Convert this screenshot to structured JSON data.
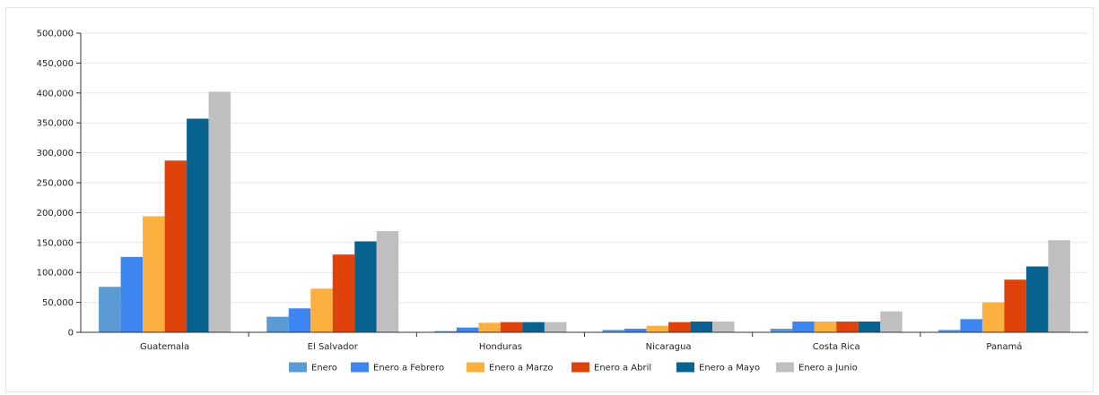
{
  "chart_data": {
    "type": "bar",
    "categories": [
      "Guatemala",
      "El Salvador",
      "Honduras",
      "Nicaragua",
      "Costa Rica",
      "Panamá"
    ],
    "series": [
      {
        "name": "Enero",
        "color": "#5b9bd5",
        "values": [
          76000,
          26000,
          2000,
          4000,
          6000,
          4000
        ]
      },
      {
        "name": "Enero a Febrero",
        "color": "#3d85f0",
        "values": [
          126000,
          40000,
          8000,
          6000,
          18000,
          22000
        ]
      },
      {
        "name": "Enero a Marzo",
        "color": "#fbb040",
        "values": [
          194000,
          73000,
          16000,
          11000,
          18000,
          50000
        ]
      },
      {
        "name": "Enero a Abril",
        "color": "#e0420b",
        "values": [
          287000,
          130000,
          17000,
          17000,
          18000,
          88000
        ]
      },
      {
        "name": "Enero a Mayo",
        "color": "#07628f",
        "values": [
          357000,
          152000,
          17000,
          18000,
          18000,
          110000
        ]
      },
      {
        "name": "Enero a Junio",
        "color": "#bfbfbf",
        "values": [
          402000,
          169000,
          17000,
          18000,
          35000,
          154000
        ]
      }
    ],
    "y_ticks": [
      "0",
      "50,000",
      "100,000",
      "150,000",
      "200,000",
      "250,000",
      "300,000",
      "350,000",
      "400,000",
      "450,000",
      "500,000"
    ],
    "ylim": [
      0,
      500000
    ],
    "grid": true,
    "legend_position": "bottom",
    "title": "",
    "xlabel": "",
    "ylabel": ""
  }
}
